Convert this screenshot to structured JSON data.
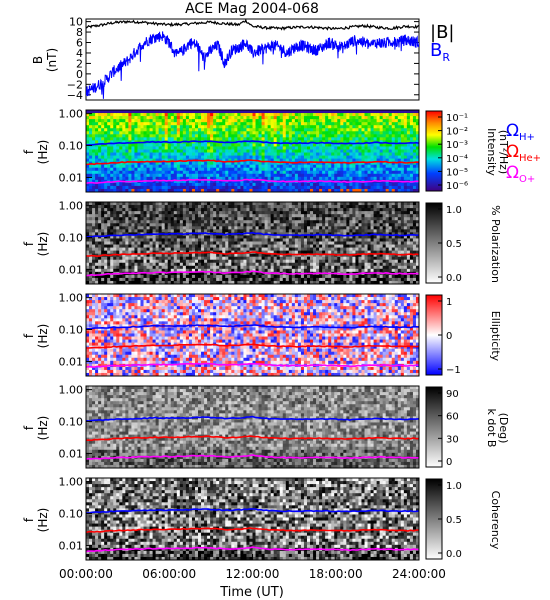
{
  "title": "ACE Mag 2004-068",
  "colors": {
    "b_total": "#000000",
    "b_r": "#0000ff",
    "h_plus": "#0000ff",
    "he_plus": "#ff0000",
    "o_plus": "#ff00ff"
  },
  "legend": {
    "total_label": "|B|",
    "radial_label": "B",
    "radial_sub": "R",
    "omega": "Ω",
    "h_sub": "H+",
    "he_sub": "He+",
    "o_sub": "O+"
  },
  "chart_data": [
    {
      "type": "line",
      "panel": "magnetic-field",
      "title": "ACE Mag 2004-068",
      "ylabel": "B",
      "yunit": "(nT)",
      "ylim": [
        -5,
        10.5
      ],
      "yticks": [
        "10",
        "8",
        "6",
        "4",
        "2",
        "0",
        "−2",
        "−4"
      ],
      "ytick_values": [
        10,
        8,
        6,
        4,
        2,
        0,
        -2,
        -4
      ],
      "xlim_hours": [
        0,
        24
      ],
      "series": [
        {
          "name": "|B|",
          "x_hours": [
            0,
            1,
            2,
            3,
            4,
            5,
            6,
            7,
            8,
            9,
            10,
            11,
            11.5,
            12,
            13,
            14,
            15,
            16,
            17,
            18,
            19,
            20,
            21,
            22,
            23,
            24
          ],
          "values": [
            8.9,
            9.3,
            9.8,
            10.0,
            9.9,
            9.6,
            9.4,
            9.5,
            9.7,
            9.9,
            9.6,
            9.4,
            10.2,
            9.1,
            8.8,
            8.7,
            8.9,
            9.0,
            8.8,
            8.6,
            8.9,
            9.2,
            8.9,
            8.7,
            9.1,
            9.0
          ]
        },
        {
          "name": "B_R",
          "x_hours": [
            0,
            0.5,
            1,
            1.5,
            2,
            2.5,
            3,
            3.5,
            4,
            4.5,
            5,
            5.5,
            6,
            6.5,
            7,
            7.5,
            8,
            8.5,
            9,
            9.5,
            10,
            10.5,
            11,
            11.5,
            12,
            12.5,
            13,
            13.5,
            14,
            14.5,
            15,
            15.5,
            16,
            16.5,
            17,
            17.5,
            18,
            18.5,
            19,
            19.5,
            20,
            20.5,
            21,
            21.5,
            22,
            22.5,
            23,
            23.5,
            24
          ],
          "values": [
            -3.5,
            -2.8,
            -2.0,
            -1.0,
            0.5,
            1.5,
            2.5,
            4.0,
            5.5,
            6.5,
            7.0,
            7.3,
            6.0,
            3.5,
            4.5,
            6.0,
            5.5,
            3.0,
            4.5,
            5.5,
            2.0,
            4.5,
            5.0,
            6.0,
            4.0,
            4.5,
            5.0,
            5.5,
            5.0,
            4.0,
            5.0,
            5.5,
            5.0,
            4.5,
            5.0,
            6.0,
            5.5,
            5.0,
            6.0,
            6.5,
            6.0,
            5.5,
            6.0,
            5.8,
            6.2,
            6.0,
            6.5,
            6.2,
            6.0
          ]
        }
      ]
    },
    {
      "type": "heatmap",
      "panel": "intensity-spectrogram",
      "ylabel": "f",
      "yunit": "(Hz)",
      "yticks": [
        "1.00",
        "0.10",
        "0.01"
      ],
      "colorbar_label": "Intensity (nT²/Hz)",
      "colorbar_label_text": "Intensity",
      "colorbar_label_unit": "(nT²/Hz)",
      "colorbar_ticks": [
        "10⁻¹",
        "10⁻²",
        "10⁻³",
        "10⁻⁴",
        "10⁻⁵",
        "10⁻⁶"
      ],
      "colormap": "rainbow"
    },
    {
      "type": "heatmap",
      "panel": "polarization",
      "ylabel": "f",
      "yunit": "(Hz)",
      "yticks": [
        "1.00",
        "0.10",
        "0.01"
      ],
      "colorbar_label": "% Polarization",
      "colorbar_ticks": [
        "1.0",
        "0.5",
        "0.0"
      ],
      "colormap": "gray"
    },
    {
      "type": "heatmap",
      "panel": "ellipticity",
      "ylabel": "f",
      "yunit": "(Hz)",
      "yticks": [
        "1.00",
        "0.10",
        "0.01"
      ],
      "colorbar_label": "Ellipticity",
      "colorbar_ticks": [
        "1",
        "0",
        "−1"
      ],
      "colormap": "blue-white-red"
    },
    {
      "type": "heatmap",
      "panel": "k-dot-b",
      "ylabel": "f",
      "yunit": "(Hz)",
      "yticks": [
        "1.00",
        "0.10",
        "0.01"
      ],
      "colorbar_label": "k dot B (Deg)",
      "colorbar_label_text": "k dot B",
      "colorbar_label_unit": "(Deg)",
      "colorbar_ticks": [
        "90",
        "60",
        "30",
        "0"
      ],
      "colormap": "gray"
    },
    {
      "type": "heatmap",
      "panel": "coherency",
      "ylabel": "f",
      "yunit": "(Hz)",
      "yticks": [
        "1.00",
        "0.10",
        "0.01"
      ],
      "colorbar_label": "Coherency",
      "colorbar_ticks": [
        "1.0",
        "0.5",
        "0.0"
      ],
      "colormap": "gray"
    }
  ],
  "gyrofrequency_lines": [
    {
      "name": "Ω_H+",
      "color": "#0000ff",
      "x_hours": [
        0,
        1,
        2,
        3,
        4,
        5,
        6,
        7,
        8,
        9,
        10,
        11,
        12,
        13,
        14,
        15,
        16,
        17,
        18,
        19,
        20,
        21,
        22,
        23,
        24
      ],
      "values": [
        0.105,
        0.11,
        0.118,
        0.12,
        0.125,
        0.13,
        0.128,
        0.13,
        0.135,
        0.135,
        0.125,
        0.13,
        0.14,
        0.125,
        0.12,
        0.118,
        0.12,
        0.122,
        0.118,
        0.115,
        0.12,
        0.125,
        0.12,
        0.118,
        0.12
      ]
    },
    {
      "name": "Ω_He+",
      "color": "#ff0000",
      "x_hours": [
        0,
        1,
        2,
        3,
        4,
        5,
        6,
        7,
        8,
        9,
        10,
        11,
        12,
        13,
        14,
        15,
        16,
        17,
        18,
        19,
        20,
        21,
        22,
        23,
        24
      ],
      "values": [
        0.026,
        0.027,
        0.029,
        0.03,
        0.031,
        0.032,
        0.032,
        0.033,
        0.034,
        0.034,
        0.031,
        0.032,
        0.035,
        0.031,
        0.03,
        0.029,
        0.03,
        0.03,
        0.029,
        0.029,
        0.03,
        0.031,
        0.03,
        0.029,
        0.03
      ]
    },
    {
      "name": "Ω_O+",
      "color": "#ff00ff",
      "x_hours": [
        0,
        1,
        2,
        3,
        4,
        5,
        6,
        7,
        8,
        9,
        10,
        11,
        12,
        13,
        14,
        15,
        16,
        17,
        18,
        19,
        20,
        21,
        22,
        23,
        24
      ],
      "values": [
        0.0066,
        0.0069,
        0.0074,
        0.0075,
        0.0078,
        0.008,
        0.008,
        0.0082,
        0.0084,
        0.0084,
        0.0078,
        0.008,
        0.0087,
        0.0078,
        0.0075,
        0.0074,
        0.0075,
        0.0076,
        0.0074,
        0.0072,
        0.0075,
        0.0078,
        0.0075,
        0.0074,
        0.0075
      ]
    }
  ],
  "x_axis": {
    "label": "Time (UT)",
    "ticks": [
      "00:00:00",
      "06:00:00",
      "12:00:00",
      "18:00:00",
      "24:00:00"
    ],
    "tick_hours": [
      0,
      6,
      12,
      18,
      24
    ]
  }
}
